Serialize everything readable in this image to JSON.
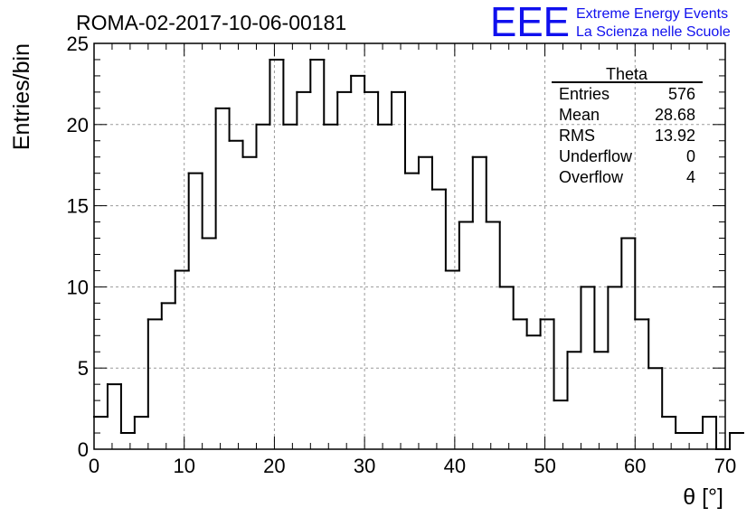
{
  "header": {
    "run_title": "ROMA-02-2017-10-06-00181",
    "logo_text": "EEE",
    "logo_line1": "Extreme Energy Events",
    "logo_line2": "La Scienza nelle Scuole",
    "logo_color": "#1010ee"
  },
  "stats": {
    "title": "Theta",
    "rows": [
      {
        "label": "Entries",
        "value": "576"
      },
      {
        "label": "Mean",
        "value": "28.68"
      },
      {
        "label": "RMS",
        "value": "13.92"
      },
      {
        "label": "Underflow",
        "value": "0"
      },
      {
        "label": "Overflow",
        "value": "4"
      }
    ]
  },
  "chart_data": {
    "type": "bar",
    "style": "step-histogram",
    "bin_width": 1.5,
    "x_start": 0,
    "values": [
      2,
      4,
      1,
      2,
      8,
      9,
      11,
      17,
      13,
      21,
      19,
      18,
      20,
      24,
      20,
      22,
      24,
      20,
      22,
      23,
      22,
      20,
      22,
      17,
      18,
      16,
      11,
      14,
      18,
      14,
      10,
      8,
      7,
      8,
      3,
      6,
      10,
      6,
      10,
      13,
      8,
      5,
      2,
      1,
      1,
      2,
      0,
      1
    ],
    "xlabel": "θ [°]",
    "ylabel": "Entries/bin",
    "xlim": [
      0,
      70
    ],
    "ylim": [
      0,
      25
    ],
    "x_ticks": [
      "0",
      "10",
      "20",
      "30",
      "40",
      "50",
      "60",
      "70"
    ],
    "y_ticks": [
      "0",
      "5",
      "10",
      "15",
      "20",
      "25"
    ],
    "grid": true,
    "line_color": "#000000",
    "grid_color": "#9a9a9a"
  }
}
